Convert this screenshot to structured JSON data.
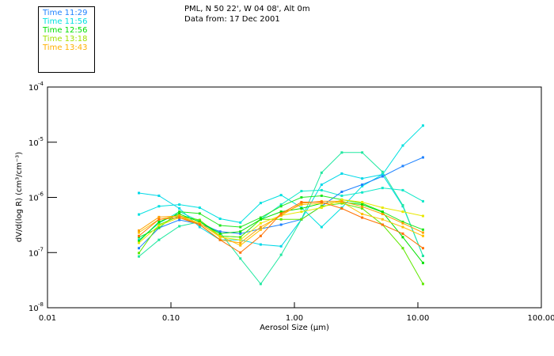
{
  "header": {
    "line1": "PML, N 50 22', W 04 08', Alt 0m",
    "line2": "Data from: 17 Dec 2001"
  },
  "legend": [
    {
      "label": "Time 11:29",
      "color": "#1e82ff"
    },
    {
      "label": "Time 11:56",
      "color": "#00e0e0"
    },
    {
      "label": "Time 12:56",
      "color": "#00e000"
    },
    {
      "label": "Time 13:18",
      "color": "#a0e000"
    },
    {
      "label": "Time 13:43",
      "color": "#ffb000"
    }
  ],
  "chart_data": {
    "type": "line",
    "xlabel": "Aerosol Size (µm)",
    "ylabel": "dV/d(log R) (cm³/cm⁻³)",
    "xscale": "log",
    "yscale": "log",
    "xlim": [
      0.01,
      100
    ],
    "ylim": [
      1e-08,
      0.0001
    ],
    "xticks": [
      {
        "v": 0.01,
        "label": "0.01"
      },
      {
        "v": 0.1,
        "label": "0.10"
      },
      {
        "v": 1,
        "label": "1.00"
      },
      {
        "v": 10,
        "label": "10.00"
      },
      {
        "v": 100,
        "label": "100.00"
      }
    ],
    "yticks": [
      {
        "v": 0.0001,
        "exp": "-4"
      },
      {
        "v": 1e-05,
        "exp": "-5"
      },
      {
        "v": 1e-06,
        "exp": "-6"
      },
      {
        "v": 1e-07,
        "exp": "-7"
      },
      {
        "v": 1e-08,
        "exp": "-8"
      }
    ],
    "x": [
      0.055,
      0.08,
      0.117,
      0.171,
      0.25,
      0.365,
      0.533,
      0.78,
      1.14,
      1.66,
      2.42,
      3.54,
      5.17,
      7.55,
      11.0
    ],
    "series": [
      {
        "color": "#00e0e0",
        "values": [
          4.9e-07,
          6.9e-07,
          7.4e-07,
          6.5e-07,
          4.1e-07,
          3.5e-07,
          7.9e-07,
          1.1e-06,
          6.5e-07,
          2.9e-07,
          6.5e-07,
          1.6e-06,
          2.6e-06,
          8.7e-06,
          2e-05
        ]
      },
      {
        "color": "#00d8e8",
        "values": [
          1.2e-06,
          1.07e-06,
          6.3e-07,
          2.9e-07,
          1.7e-07,
          1.7e-07,
          1.4e-07,
          1.3e-07,
          4e-07,
          1.7e-06,
          2.7e-06,
          2.2e-06,
          2.6e-06,
          6.9e-07,
          8.7e-08
        ]
      },
      {
        "color": "#20e8a0",
        "values": [
          8.5e-08,
          1.7e-07,
          3e-07,
          3.6e-07,
          2.3e-07,
          7.8e-08,
          2.7e-08,
          9.1e-08,
          4e-07,
          2.8e-06,
          6.5e-06,
          6.5e-06,
          2.9e-06,
          7.2e-07,
          8.7e-08
        ]
      },
      {
        "color": "#10e8c8",
        "values": [
          1.7e-07,
          3.4e-07,
          5.5e-07,
          3.7e-07,
          2e-07,
          1.9e-07,
          4e-07,
          7.4e-07,
          1.3e-06,
          1.35e-06,
          1.07e-06,
          1.23e-06,
          1.48e-06,
          1.35e-06,
          8.5e-07
        ]
      },
      {
        "color": "#1e82ff",
        "values": [
          1.2e-07,
          2.8e-07,
          3.9e-07,
          3.3e-07,
          2.4e-07,
          2.2e-07,
          2.7e-07,
          3.2e-07,
          4e-07,
          6.9e-07,
          1.26e-06,
          1.7e-06,
          2.4e-06,
          3.7e-06,
          5.3e-06
        ]
      },
      {
        "color": "#20e820",
        "values": [
          1.9e-07,
          2.8e-07,
          5.5e-07,
          5.1e-07,
          3.1e-07,
          2.9e-07,
          4.3e-07,
          6.9e-07,
          1e-06,
          1.07e-06,
          9.1e-07,
          7.8e-07,
          5.5e-07,
          3.6e-07,
          2.6e-07
        ]
      },
      {
        "color": "#60e800",
        "values": [
          9.8e-08,
          3.2e-07,
          4.6e-07,
          3.9e-07,
          2e-07,
          1.9e-07,
          4e-07,
          4e-07,
          4e-07,
          6.9e-07,
          7.8e-07,
          6.3e-07,
          3.2e-07,
          1.2e-07,
          2.7e-08
        ]
      },
      {
        "color": "#00e000",
        "values": [
          1.6e-07,
          3.6e-07,
          5e-07,
          3.6e-07,
          2.2e-07,
          2.4e-07,
          4e-07,
          5.5e-07,
          6.3e-07,
          7.8e-07,
          8.2e-07,
          7.4e-07,
          5.4e-07,
          1.9e-07,
          6.5e-08
        ]
      },
      {
        "color": "#e8e800",
        "values": [
          1.5e-07,
          3.1e-07,
          4.3e-07,
          3.4e-07,
          1.9e-07,
          1.7e-07,
          3.4e-07,
          4.7e-07,
          5.5e-07,
          6.5e-07,
          9.1e-07,
          8.2e-07,
          6.5e-07,
          5.5e-07,
          4.6e-07
        ]
      },
      {
        "color": "#ffc000",
        "values": [
          2.3e-07,
          4e-07,
          4.7e-07,
          3.4e-07,
          2e-07,
          1.35e-07,
          2.6e-07,
          5e-07,
          7.4e-07,
          7.8e-07,
          8.2e-07,
          5e-07,
          4e-07,
          2.9e-07,
          2e-07
        ]
      },
      {
        "color": "#ffa000",
        "values": [
          2.5e-07,
          4.4e-07,
          4.6e-07,
          3.2e-07,
          1.7e-07,
          1.5e-07,
          2.9e-07,
          4.7e-07,
          7.8e-07,
          8.5e-07,
          8.5e-07,
          6.8e-07,
          5e-07,
          3.4e-07,
          2.3e-07
        ]
      },
      {
        "color": "#ff7000",
        "values": [
          2e-07,
          4e-07,
          4.3e-07,
          3.2e-07,
          1.7e-07,
          1e-07,
          2e-07,
          5.1e-07,
          8.2e-07,
          8.2e-07,
          6.3e-07,
          4.3e-07,
          3.2e-07,
          2.2e-07,
          1.2e-07
        ]
      }
    ]
  }
}
